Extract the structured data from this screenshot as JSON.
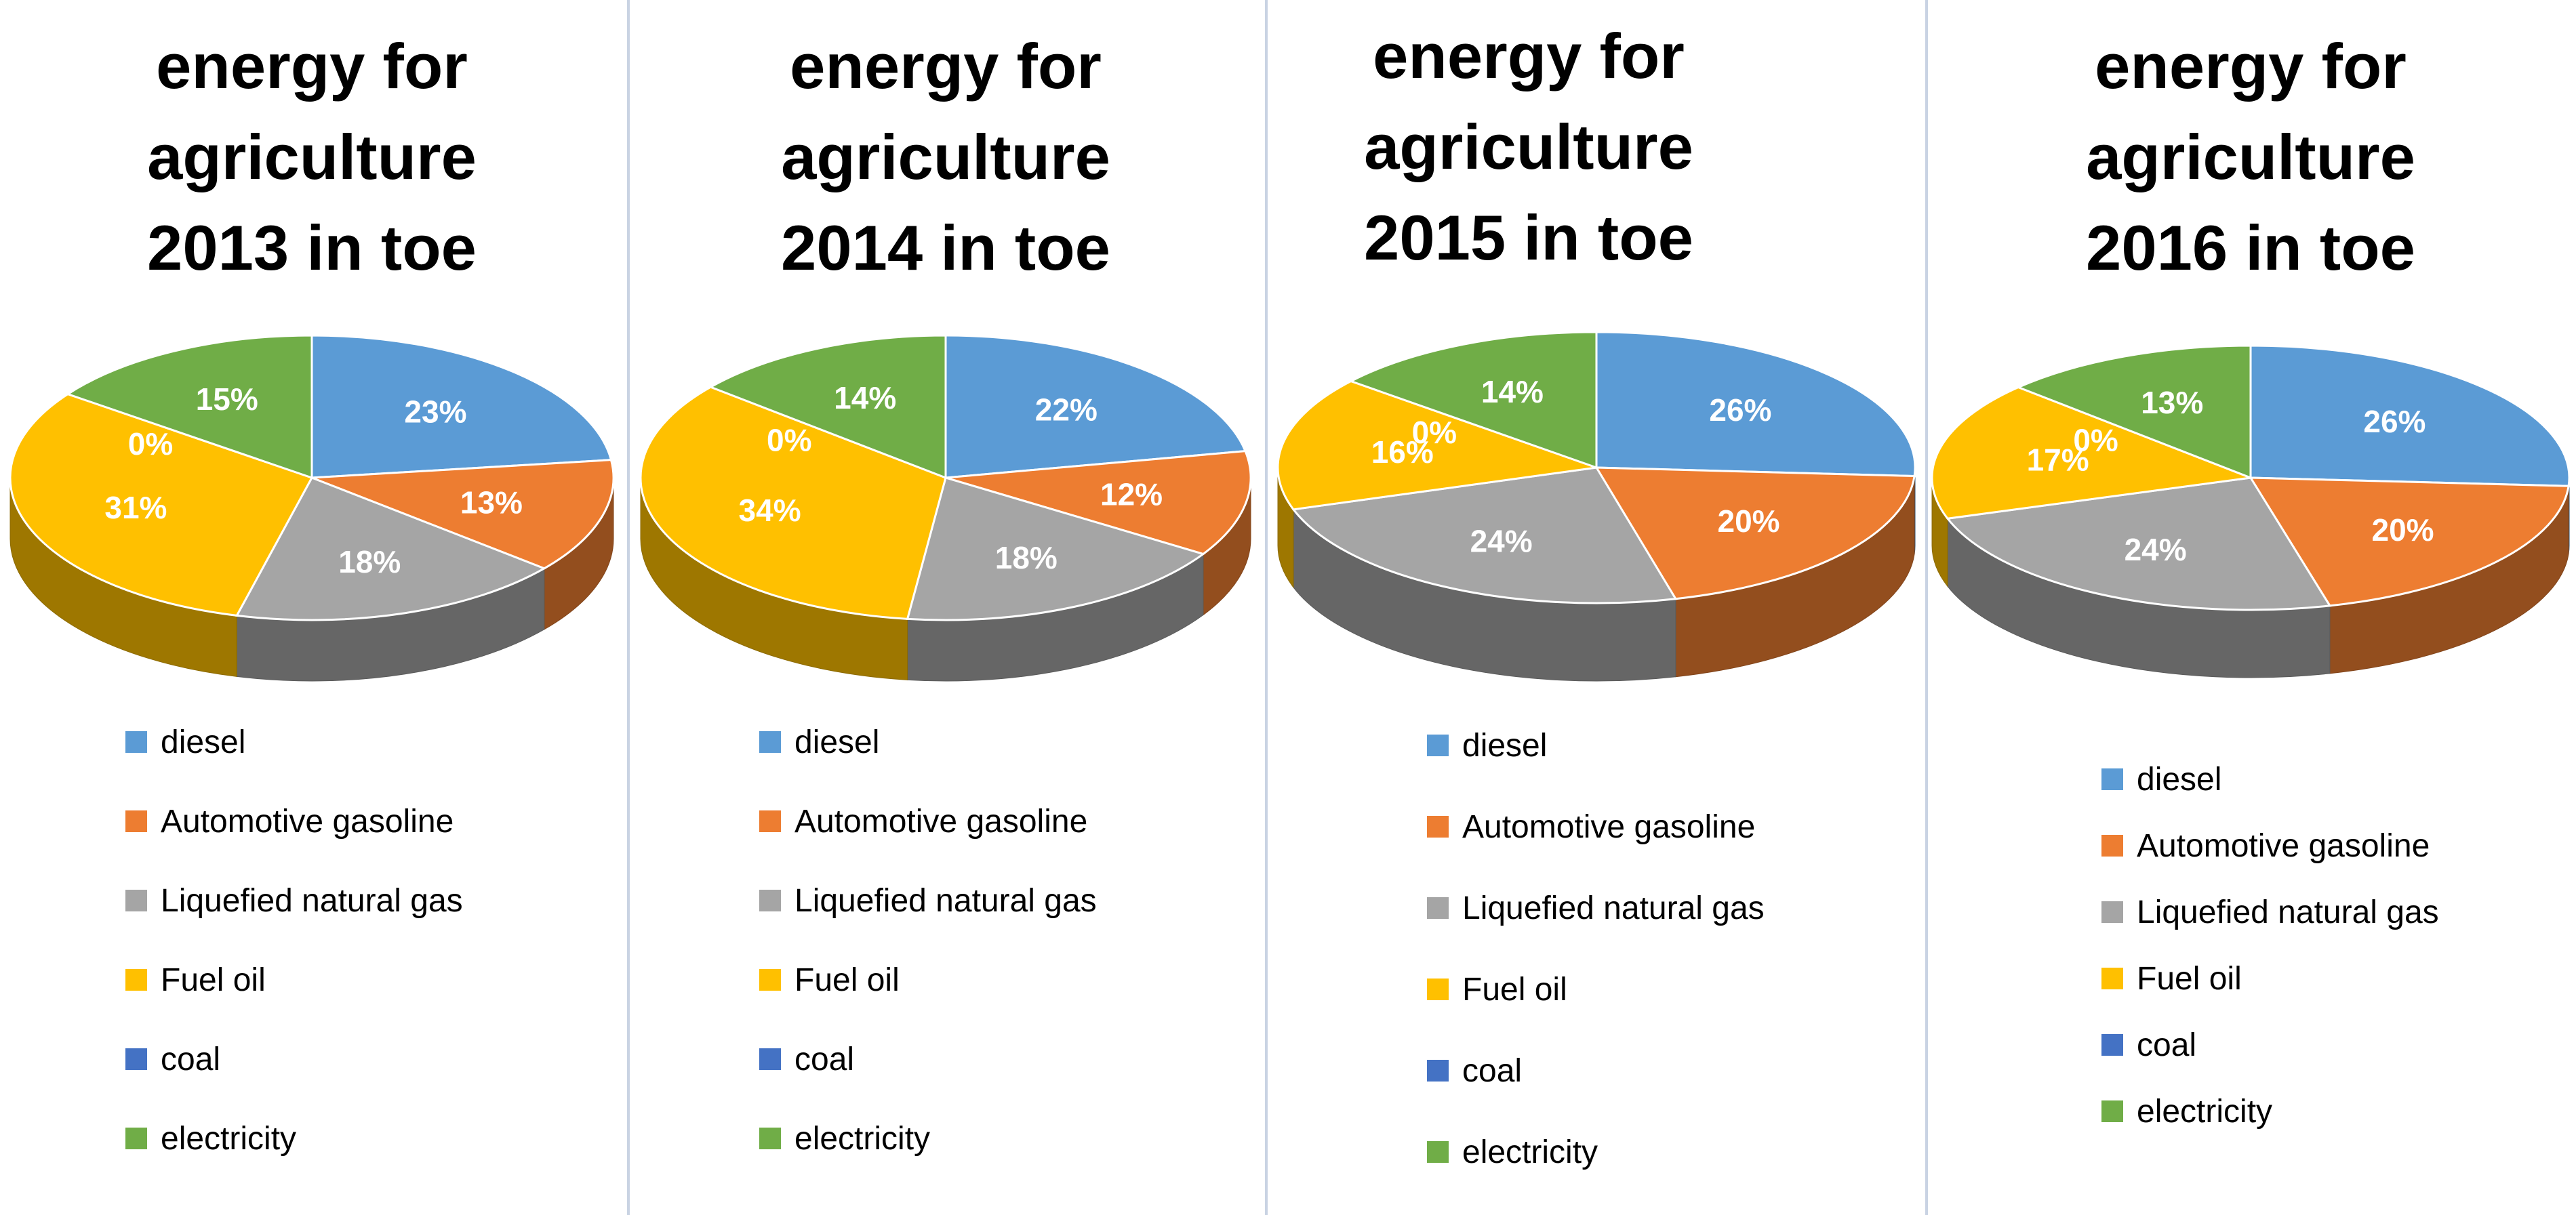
{
  "colors": {
    "diesel": "#5B9BD5",
    "automotive_gasoline": "#ED7D31",
    "liquefied_natural_gas": "#A5A5A5",
    "fuel_oil": "#FFC000",
    "coal": "#4472C4",
    "electricity": "#70AD47",
    "divider": "#C9D3E3",
    "title_text": "#000000",
    "label_text": "#ffffff",
    "legend_text": "#000000"
  },
  "chart_data": [
    {
      "type": "pie",
      "title_lines": [
        "energy for",
        "agriculture",
        "2013 in toe"
      ],
      "categories": [
        "diesel",
        "Automotive gasoline",
        "Liquefied natural gas",
        "Fuel oil",
        "coal",
        "electricity"
      ],
      "values": [
        23,
        13,
        18,
        31,
        0,
        15
      ],
      "labels": [
        "23%",
        "13%",
        "18%",
        "31%",
        "0%",
        "15%"
      ],
      "unit": "%",
      "legend": "bottom"
    },
    {
      "type": "pie",
      "title_lines": [
        "energy for",
        "agriculture",
        "2014 in toe"
      ],
      "categories": [
        "diesel",
        "Automotive gasoline",
        "Liquefied natural gas",
        "Fuel oil",
        "coal",
        "electricity"
      ],
      "values": [
        22,
        12,
        18,
        34,
        0,
        14
      ],
      "labels": [
        "22%",
        "12%",
        "18%",
        "34%",
        "0%",
        "14%"
      ],
      "unit": "%",
      "legend": "bottom"
    },
    {
      "type": "pie",
      "title_lines": [
        "energy for",
        "agriculture",
        "2015 in toe"
      ],
      "categories": [
        "diesel",
        "Automotive gasoline",
        "Liquefied natural gas",
        "Fuel oil",
        "coal",
        "electricity"
      ],
      "values": [
        26,
        20,
        24,
        16,
        0,
        14
      ],
      "labels": [
        "26%",
        "20%",
        "24%",
        "16%",
        "0%",
        "14%"
      ],
      "unit": "%",
      "legend": "bottom"
    },
    {
      "type": "pie",
      "title_lines": [
        "energy for",
        "agriculture",
        "2016 in toe"
      ],
      "categories": [
        "diesel",
        "Automotive gasoline",
        "Liquefied natural gas",
        "Fuel oil",
        "coal",
        "electricity"
      ],
      "values": [
        26,
        20,
        24,
        17,
        0,
        13
      ],
      "labels": [
        "26%",
        "20%",
        "24%",
        "17%",
        "0%",
        "13%"
      ],
      "unit": "%",
      "legend": "bottom"
    }
  ]
}
